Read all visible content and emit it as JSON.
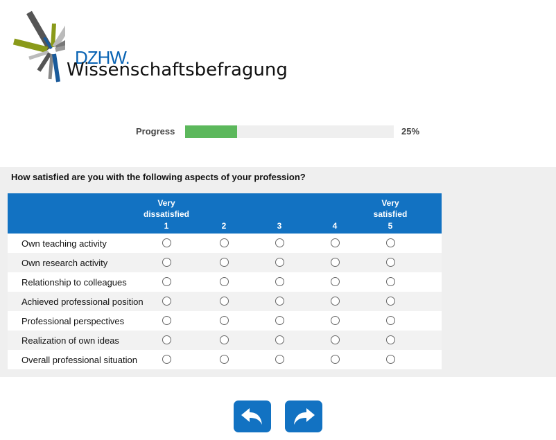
{
  "logo": {
    "brand": "DZHW.",
    "name": "Wissenschaftsbefragung"
  },
  "progress": {
    "label": "Progress",
    "value": 0.25,
    "text": "25%"
  },
  "question": "How satisfied are you with the following aspects of your profession?",
  "scale": [
    {
      "label_line1": "Very",
      "label_line2": "dissatisfied",
      "number": "1"
    },
    {
      "label_line1": "",
      "label_line2": "",
      "number": "2"
    },
    {
      "label_line1": "",
      "label_line2": "",
      "number": "3"
    },
    {
      "label_line1": "",
      "label_line2": "",
      "number": "4"
    },
    {
      "label_line1": "Very",
      "label_line2": "satisfied",
      "number": "5"
    }
  ],
  "items": [
    "Own teaching activity",
    "Own research activity",
    "Relationship to colleagues",
    "Achieved professional position",
    "Professional perspectives",
    "Realization of own ideas",
    "Overall professional situation"
  ],
  "nav": {
    "back_icon": "back-arrow-icon",
    "next_icon": "forward-arrow-icon"
  },
  "colors": {
    "accent": "#1272c2",
    "progress": "#5cb85c"
  }
}
